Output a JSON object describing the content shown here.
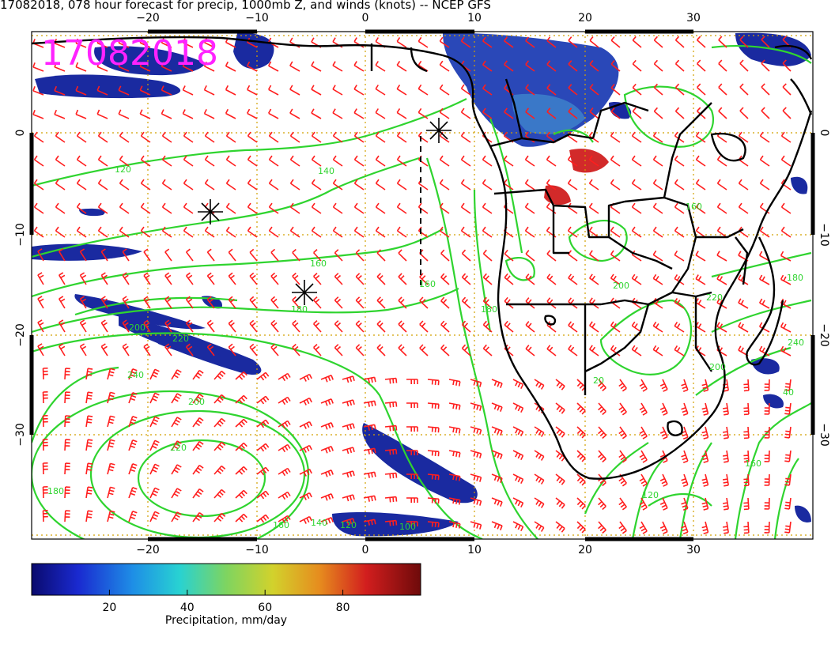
{
  "title": "17082018, 078 hour forecast for precip, 1000mb Z, and winds (knots) -- NCEP GFS",
  "date_stamp": "17082018",
  "axes": {
    "lon_ticks": [
      "−20",
      "−10",
      "0",
      "10",
      "20",
      "30"
    ],
    "lat_ticks": [
      "0",
      "−10",
      "−20",
      "−30"
    ]
  },
  "contour_labels": [
    "120",
    "140",
    "160",
    "180",
    "200",
    "220",
    "240",
    "220",
    "200",
    "180",
    "160",
    "140",
    "120",
    "100",
    "160",
    "180",
    "200",
    "220",
    "240",
    "200",
    "40",
    "20",
    "120",
    "160",
    "160",
    "180"
  ],
  "colorbar": {
    "label": "Precipitation, mm/day",
    "ticks": [
      "20",
      "40",
      "60",
      "80"
    ],
    "tick_values": [
      20,
      40,
      60,
      80
    ],
    "range": [
      0,
      100
    ],
    "colors": [
      "#0a0a6e",
      "#1a2ad0",
      "#1e8ee6",
      "#28d2d2",
      "#7ed460",
      "#d2d22c",
      "#e68c1e",
      "#d21e1e",
      "#6e0a0a"
    ]
  },
  "colors": {
    "contour": "#2fd42f",
    "wind_barbs": "#ff1e1e",
    "coastline": "#000000",
    "grid": "#d2a000",
    "precip": "#1a2aa0",
    "date_stamp": "#ff22ff"
  },
  "icons": [
    "asterisk-marker-icon"
  ]
}
